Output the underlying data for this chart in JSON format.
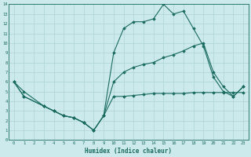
{
  "background_color": "#cce9eb",
  "grid_color": "#add4d6",
  "line_color": "#1a6b60",
  "xlabel": "Humidex (Indice chaleur)",
  "xlim": [
    -0.5,
    23.5
  ],
  "ylim": [
    0,
    14
  ],
  "xticks": [
    0,
    1,
    2,
    3,
    4,
    5,
    6,
    7,
    8,
    9,
    10,
    11,
    12,
    13,
    14,
    15,
    16,
    17,
    18,
    19,
    20,
    21,
    22,
    23
  ],
  "yticks": [
    0,
    1,
    2,
    3,
    4,
    5,
    6,
    7,
    8,
    9,
    10,
    11,
    12,
    13,
    14
  ],
  "line1_x": [
    0,
    1,
    3,
    4,
    5,
    6,
    7,
    8,
    9,
    10,
    11,
    12,
    13,
    14,
    15,
    16,
    17,
    18,
    19,
    20,
    21,
    22,
    23
  ],
  "line1_y": [
    6.0,
    5.0,
    3.5,
    3.0,
    2.5,
    2.3,
    1.8,
    1.0,
    2.5,
    9.0,
    11.5,
    12.2,
    12.2,
    12.5,
    14.0,
    13.0,
    13.3,
    11.5,
    9.7,
    6.5,
    5.0,
    4.5,
    5.5
  ],
  "line2_x": [
    0,
    1,
    3,
    4,
    5,
    6,
    7,
    8,
    9,
    10,
    11,
    12,
    13,
    14,
    15,
    16,
    17,
    18,
    19,
    20,
    21,
    22,
    23
  ],
  "line2_y": [
    6.0,
    4.5,
    3.5,
    3.0,
    2.5,
    2.3,
    1.8,
    1.0,
    2.5,
    6.0,
    7.0,
    7.5,
    7.8,
    8.0,
    8.5,
    8.8,
    9.2,
    9.7,
    10.0,
    7.0,
    5.5,
    4.5,
    5.5
  ],
  "line3_x": [
    0,
    1,
    3,
    4,
    5,
    6,
    7,
    8,
    9,
    10,
    11,
    12,
    13,
    14,
    15,
    16,
    17,
    18,
    19,
    20,
    21,
    22,
    23
  ],
  "line3_y": [
    6.0,
    4.5,
    3.5,
    3.0,
    2.5,
    2.3,
    1.8,
    1.0,
    2.5,
    4.5,
    4.5,
    4.6,
    4.7,
    4.8,
    4.8,
    4.8,
    4.8,
    4.9,
    4.9,
    4.9,
    4.9,
    4.9,
    4.9
  ]
}
